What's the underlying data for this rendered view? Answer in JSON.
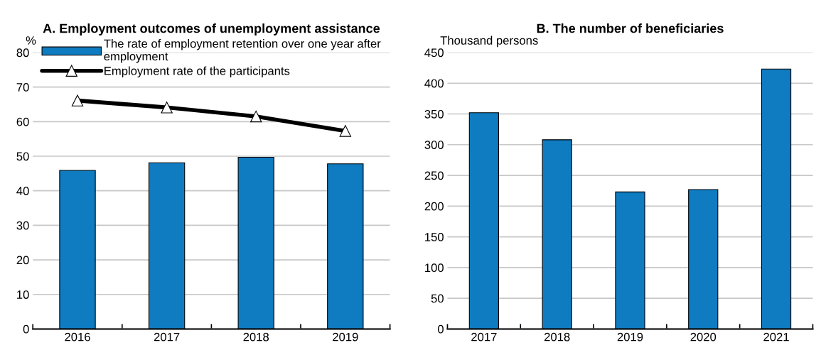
{
  "chart_data": [
    {
      "type": "bar",
      "title": "A. Employment outcomes of unemployment assistance",
      "ylabel": "%",
      "categories": [
        "2016",
        "2017",
        "2018",
        "2019"
      ],
      "series": [
        {
          "name": "The rate of employment retention over one year after employment",
          "color": "#0f7bc0",
          "values": [
            45.9,
            48.1,
            49.7,
            47.8
          ]
        },
        {
          "name": "Employment rate of the participants",
          "type": "line",
          "color": "#000000",
          "marker": "triangle",
          "values": [
            66.1,
            64.1,
            61.5,
            57.3
          ]
        }
      ],
      "ylim": [
        0,
        80
      ],
      "yticks": [
        0,
        10,
        20,
        30,
        40,
        50,
        60,
        70,
        80
      ],
      "grid": "y",
      "legend": "top"
    },
    {
      "type": "bar",
      "title": "B. The number of beneficiaries",
      "ylabel": "Thousand persons",
      "categories": [
        "2017",
        "2018",
        "2019",
        "2020",
        "2021"
      ],
      "series": [
        {
          "color": "#0f7bc0",
          "values": [
            352,
            308,
            223,
            227,
            423
          ]
        }
      ],
      "ylim": [
        0,
        450
      ],
      "yticks": [
        0,
        50,
        100,
        150,
        200,
        250,
        300,
        350,
        400,
        450
      ],
      "grid": "y"
    }
  ]
}
